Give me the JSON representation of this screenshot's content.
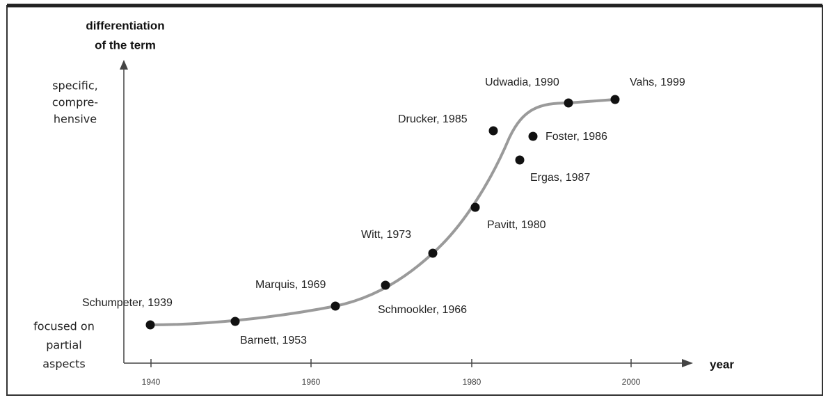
{
  "axis": {
    "y_title": [
      "differentiation",
      "of the term"
    ],
    "y_top": [
      "specific,",
      "compre-",
      "hensive"
    ],
    "y_bottom": [
      "focused on",
      "partial",
      "aspects"
    ],
    "x_title": "year",
    "x_ticks": [
      "1940",
      "1960",
      "1980",
      "2000"
    ]
  },
  "nodes": [
    {
      "label": "Schumpeter, 1939"
    },
    {
      "label": "Barnett, 1953"
    },
    {
      "label": "Marquis, 1969"
    },
    {
      "label": "Schmookler, 1966"
    },
    {
      "label": "Witt, 1973"
    },
    {
      "label": "Pavitt, 1980"
    },
    {
      "label": "Drucker, 1985"
    },
    {
      "label": "Foster, 1986"
    },
    {
      "label": "Ergas, 1987"
    },
    {
      "label": "Udwadia, 1990"
    },
    {
      "label": "Vahs, 1999"
    }
  ]
}
